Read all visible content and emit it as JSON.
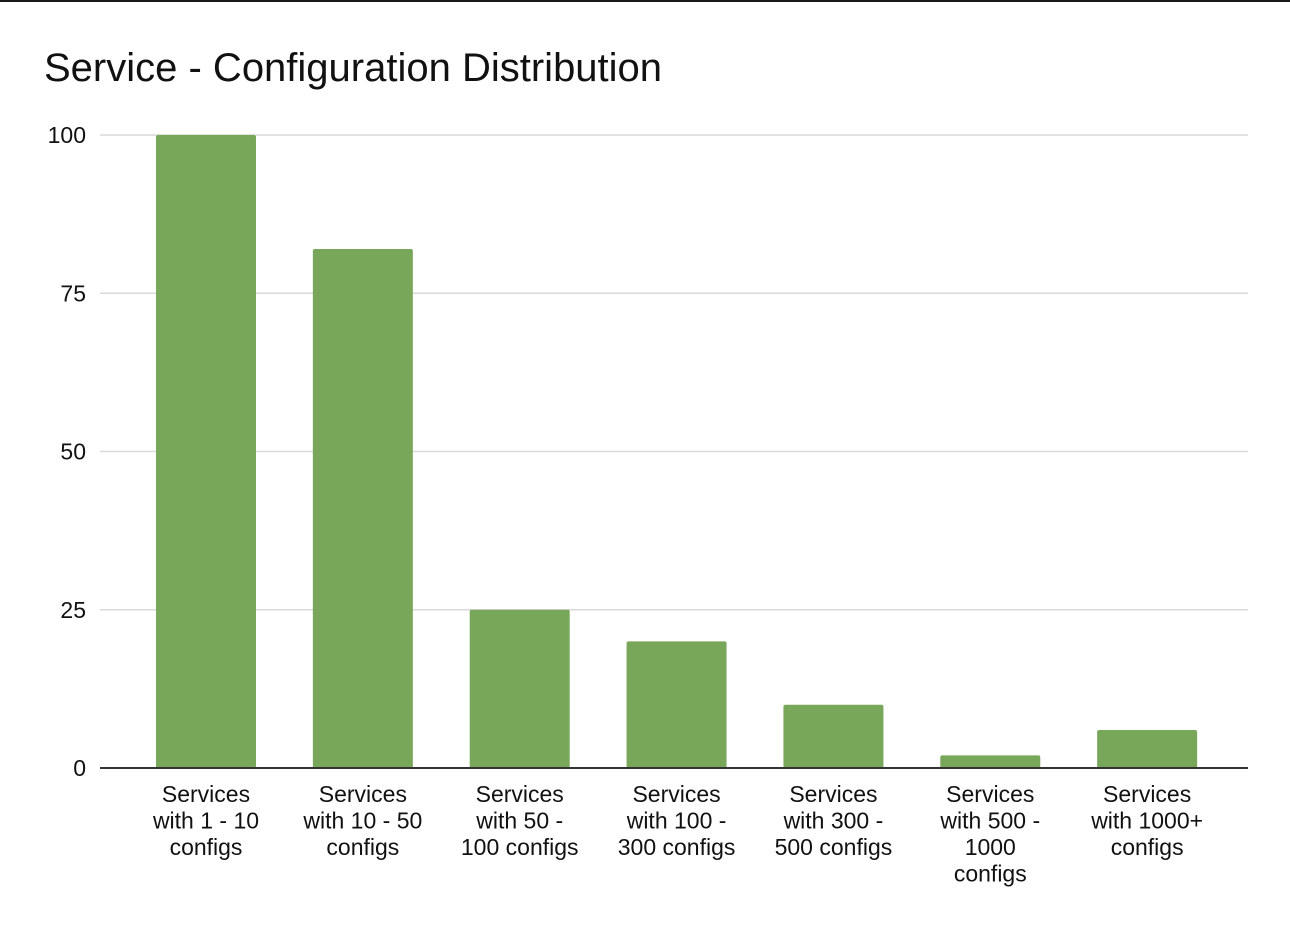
{
  "chart_data": {
    "type": "bar",
    "title": "Service - Configuration Distribution",
    "xlabel": "",
    "ylabel": "",
    "categories": [
      "Services with 1 - 10 configs",
      "Services with 10 - 50 configs",
      "Services with 50 - 100 configs",
      "Services with 100 - 300 configs",
      "Services with 300 - 500 configs",
      "Services with 500 - 1000 configs",
      "Services with 1000+ configs"
    ],
    "category_label_lines": [
      [
        "Services",
        "with 1 - 10",
        "configs"
      ],
      [
        "Services",
        "with 10 - 50",
        "configs"
      ],
      [
        "Services",
        "with 50 -",
        "100 configs"
      ],
      [
        "Services",
        "with 100 -",
        "300 configs"
      ],
      [
        "Services",
        "with 300 -",
        "500 configs"
      ],
      [
        "Services",
        "with 500 -",
        "1000",
        "configs"
      ],
      [
        "Services",
        "with 1000+",
        "configs"
      ]
    ],
    "values": [
      100,
      82,
      25,
      20,
      10,
      2,
      6
    ],
    "ylim": [
      0,
      100
    ],
    "yticks": [
      0,
      25,
      50,
      75,
      100
    ],
    "grid": true,
    "legend": "none",
    "colors": {
      "bar": "#78a75a",
      "grid": "#d9d9d9",
      "axis": "#333333",
      "text": "#111111"
    }
  }
}
